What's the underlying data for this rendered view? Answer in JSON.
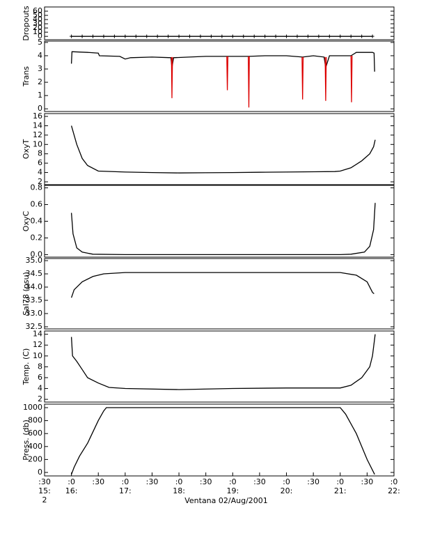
{
  "chart_data": [
    {
      "type": "scatter",
      "ylabel": "Dropouts",
      "color": "#000000",
      "marker": "plus",
      "x": [
        16.0,
        16.2,
        16.4,
        16.6,
        16.8,
        17.0,
        17.2,
        17.4,
        17.6,
        17.8,
        18.0,
        18.2,
        18.4,
        18.6,
        18.8,
        19.0,
        19.2,
        19.4,
        19.6,
        19.8,
        20.0,
        20.2,
        20.4,
        20.6,
        20.8,
        21.0,
        21.2,
        21.4,
        21.6
      ],
      "values": [
        0,
        0,
        0,
        0,
        0,
        0,
        0,
        0,
        0,
        0,
        0,
        0,
        0,
        0,
        0,
        0,
        0,
        0,
        0,
        0,
        0,
        0,
        0,
        0,
        0,
        0,
        0,
        0,
        0
      ],
      "ylim": [
        -8,
        70
      ],
      "yticks": [
        0,
        10,
        20,
        30,
        40,
        50,
        60
      ]
    },
    {
      "type": "line",
      "ylabel": "Trans",
      "series": [
        {
          "color": "#000000",
          "x": [
            16.0,
            16.01,
            16.3,
            16.5,
            16.52,
            16.9,
            17.0,
            17.1,
            17.5,
            17.85,
            17.87,
            17.9,
            18.5,
            18.9,
            19.3,
            19.6,
            20.0,
            20.3,
            20.5,
            20.7,
            20.73,
            20.8,
            21.2,
            21.3,
            21.6,
            21.63,
            21.64
          ],
          "values": [
            3.4,
            4.3,
            4.25,
            4.2,
            4.0,
            3.95,
            3.75,
            3.85,
            3.9,
            3.85,
            3.1,
            3.85,
            3.95,
            3.95,
            3.95,
            4.0,
            4.0,
            3.9,
            4.0,
            3.9,
            3.1,
            4.0,
            4.0,
            4.25,
            4.25,
            4.2,
            2.8
          ]
        },
        {
          "color": "#dd0000",
          "x": [
            17.86,
            17.87,
            17.88,
            null,
            18.89,
            18.9,
            18.91,
            null,
            19.29,
            19.3,
            19.31,
            null,
            20.29,
            20.3,
            20.31,
            null,
            20.72,
            20.73,
            20.74,
            null,
            21.2,
            21.21,
            21.22
          ],
          "values": [
            3.9,
            0.8,
            3.9,
            null,
            3.95,
            1.4,
            3.95,
            null,
            3.95,
            0.1,
            3.95,
            null,
            3.9,
            0.7,
            3.9,
            null,
            3.9,
            0.6,
            3.9,
            null,
            4.0,
            0.5,
            4.0
          ]
        }
      ],
      "ylim": [
        -0.2,
        5.1
      ],
      "yticks": [
        0,
        1,
        2,
        3,
        4,
        5
      ]
    },
    {
      "type": "line",
      "ylabel": "OxyT",
      "color": "#000000",
      "x": [
        16.0,
        16.1,
        16.2,
        16.3,
        16.5,
        17.0,
        17.5,
        18.0,
        18.5,
        19.0,
        19.5,
        20.0,
        20.5,
        20.9,
        21.0,
        21.2,
        21.4,
        21.55,
        21.62,
        21.65
      ],
      "values": [
        14,
        10,
        7,
        5.5,
        4.3,
        4.1,
        4.0,
        3.9,
        3.95,
        4.0,
        4.05,
        4.1,
        4.15,
        4.2,
        4.3,
        5,
        6.5,
        8,
        9.5,
        11
      ],
      "ylim": [
        1.4,
        16.6
      ],
      "yticks": [
        2,
        4,
        6,
        8,
        10,
        12,
        14,
        16
      ]
    },
    {
      "type": "line",
      "ylabel": "OxyC",
      "color": "#000000",
      "x": [
        16.0,
        16.03,
        16.1,
        16.2,
        16.4,
        17.0,
        18.0,
        19.0,
        20.0,
        21.0,
        21.2,
        21.45,
        21.55,
        21.62,
        21.65
      ],
      "values": [
        0.5,
        0.25,
        0.08,
        0.03,
        0.005,
        0,
        0,
        0,
        0,
        0,
        0.005,
        0.03,
        0.1,
        0.3,
        0.62
      ],
      "ylim": [
        -0.03,
        0.83
      ],
      "yticks": [
        {
          "value": 0,
          "label": "0.0"
        },
        0.2,
        0.4,
        0.6,
        0.8
      ]
    },
    {
      "type": "line",
      "ylabel": "Sal78 (psu)",
      "color": "#000000",
      "x": [
        16.0,
        16.05,
        16.2,
        16.4,
        16.6,
        17.0,
        18.0,
        19.0,
        20.0,
        21.0,
        21.3,
        21.5,
        21.6,
        21.63
      ],
      "values": [
        33.6,
        33.9,
        34.2,
        34.4,
        34.5,
        34.55,
        34.55,
        34.55,
        34.55,
        34.55,
        34.45,
        34.2,
        33.8,
        33.75
      ],
      "ylim": [
        32.42,
        35.08
      ],
      "yticks": [
        {
          "value": 32.5,
          "label": "32.5"
        },
        {
          "value": 33,
          "label": "33.0"
        },
        33.5,
        {
          "value": 34,
          "label": "34.0"
        },
        34.5,
        {
          "value": 35,
          "label": "35.0"
        }
      ]
    },
    {
      "type": "line",
      "ylabel": "Temp. (C)",
      "color": "#000000",
      "x": [
        16.0,
        16.02,
        16.1,
        16.2,
        16.3,
        16.5,
        16.7,
        17.0,
        18.0,
        19.0,
        20.0,
        21.0,
        21.2,
        21.4,
        21.55,
        21.6,
        21.65
      ],
      "values": [
        13.5,
        10,
        9,
        7.5,
        6,
        5,
        4.2,
        4.0,
        3.8,
        4.0,
        4.1,
        4.1,
        4.6,
        6,
        8,
        10,
        14
      ],
      "ylim": [
        1.5,
        14.6
      ],
      "yticks": [
        2,
        4,
        6,
        8,
        10,
        12,
        14
      ]
    },
    {
      "type": "line",
      "ylabel": "Press. (db)",
      "color": "#000000",
      "x": [
        16.0,
        16.05,
        16.15,
        16.3,
        16.5,
        16.6,
        16.65,
        21.0,
        21.1,
        21.3,
        21.5,
        21.64
      ],
      "values": [
        -30,
        80,
        250,
        450,
        800,
        950,
        1000,
        1000,
        900,
        600,
        200,
        -30
      ],
      "ylim": [
        -54,
        1054
      ],
      "yticks": [
        0,
        200,
        400,
        600,
        800,
        1000
      ],
      "xlabel": "Ventana 02/Aug/2001",
      "xlim": [
        15.5,
        22.0
      ],
      "xticks": [
        {
          "value": 15.5,
          "label": ":30\n15:\n2"
        },
        {
          "value": 16,
          "label": ":0\n16:"
        },
        {
          "value": 16.5,
          "label": ":30"
        },
        {
          "value": 17,
          "label": ":0\n17:"
        },
        {
          "value": 17.5,
          "label": ":30"
        },
        {
          "value": 18,
          "label": ":0\n18:"
        },
        {
          "value": 18.5,
          "label": ":30"
        },
        {
          "value": 19,
          "label": ":0\n19:"
        },
        {
          "value": 19.5,
          "label": ":30"
        },
        {
          "value": 20,
          "label": ":0\n20:"
        },
        {
          "value": 20.5,
          "label": ":30"
        },
        {
          "value": 21,
          "label": ":0\n21:"
        },
        {
          "value": 21.5,
          "label": ":30"
        },
        {
          "value": 22,
          "label": ":0\n22:"
        }
      ]
    }
  ]
}
